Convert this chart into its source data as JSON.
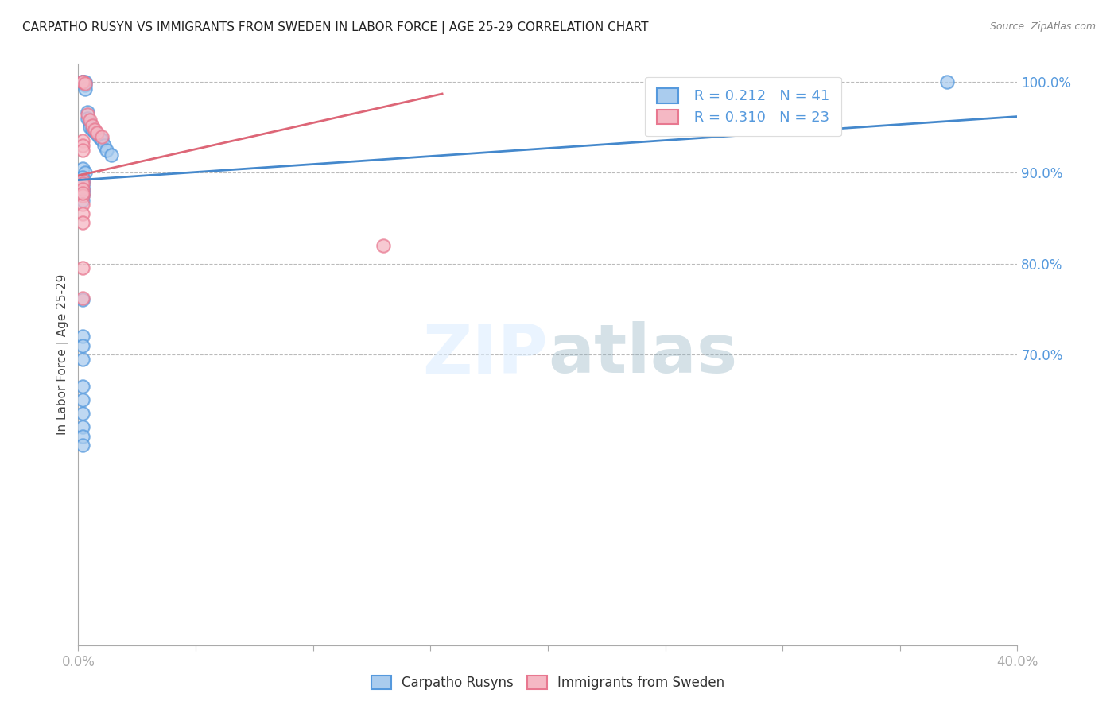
{
  "title": "CARPATHO RUSYN VS IMMIGRANTS FROM SWEDEN IN LABOR FORCE | AGE 25-29 CORRELATION CHART",
  "source": "Source: ZipAtlas.com",
  "ylabel": "In Labor Force | Age 25-29",
  "xlim": [
    0.0,
    0.4
  ],
  "ylim": [
    0.38,
    1.02
  ],
  "yticks": [
    0.7,
    0.8,
    0.9,
    1.0
  ],
  "ytick_labels": [
    "70.0%",
    "80.0%",
    "90.0%",
    "100.0%"
  ],
  "xtick_positions": [
    0.0,
    0.05,
    0.1,
    0.15,
    0.2,
    0.25,
    0.3,
    0.35,
    0.4
  ],
  "xtick_labels": [
    "0.0%",
    "",
    "",
    "",
    "",
    "",
    "",
    "",
    "40.0%"
  ],
  "color_blue": "#aaccee",
  "color_pink": "#f5b8c4",
  "color_blue_edge": "#5599dd",
  "color_pink_edge": "#e87890",
  "color_blue_line": "#4488cc",
  "color_pink_line": "#dd6677",
  "color_tick_labels": "#5599dd",
  "watermark_color": "#ddeeff",
  "blue_dots_x": [
    0.002,
    0.002,
    0.002,
    0.003,
    0.003,
    0.003,
    0.004,
    0.004,
    0.005,
    0.005,
    0.006,
    0.007,
    0.008,
    0.009,
    0.01,
    0.011,
    0.012,
    0.014,
    0.002,
    0.003,
    0.002,
    0.002,
    0.002,
    0.002,
    0.002,
    0.002,
    0.002,
    0.002,
    0.002,
    0.002,
    0.002,
    0.002,
    0.002,
    0.002,
    0.002,
    0.002,
    0.002,
    0.002,
    0.002,
    0.37,
    0.002
  ],
  "blue_dots_y": [
    1.0,
    1.0,
    1.0,
    1.0,
    0.997,
    0.992,
    0.967,
    0.96,
    0.955,
    0.95,
    0.948,
    0.945,
    0.942,
    0.939,
    0.936,
    0.93,
    0.925,
    0.92,
    0.905,
    0.9,
    0.895,
    0.892,
    0.89,
    0.888,
    0.885,
    0.882,
    0.88,
    0.878,
    0.875,
    0.87,
    0.76,
    0.72,
    0.71,
    0.695,
    0.665,
    0.635,
    0.62,
    0.61,
    0.6,
    1.0,
    0.65
  ],
  "pink_dots_x": [
    0.002,
    0.002,
    0.003,
    0.004,
    0.005,
    0.006,
    0.007,
    0.008,
    0.01,
    0.002,
    0.002,
    0.002,
    0.002,
    0.002,
    0.002,
    0.002,
    0.002,
    0.002,
    0.002,
    0.002,
    0.002,
    0.13,
    0.002
  ],
  "pink_dots_y": [
    1.0,
    1.0,
    0.998,
    0.964,
    0.958,
    0.952,
    0.948,
    0.944,
    0.94,
    0.935,
    0.93,
    0.925,
    0.892,
    0.888,
    0.882,
    0.875,
    0.865,
    0.855,
    0.845,
    0.795,
    0.762,
    0.82,
    0.878
  ],
  "blue_trend": [
    0.0,
    0.4,
    0.892,
    0.962
  ],
  "pink_trend": [
    0.0,
    0.155,
    0.897,
    0.987
  ]
}
